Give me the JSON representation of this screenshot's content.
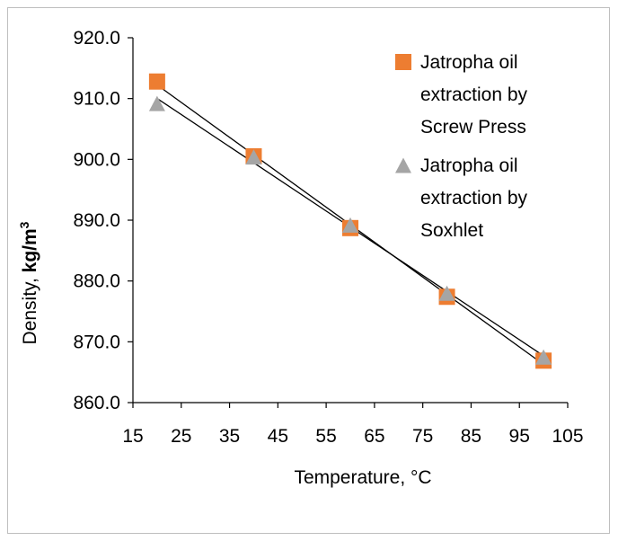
{
  "chart_data": {
    "type": "scatter",
    "title": "",
    "xlabel": "Temperature, °C",
    "ylabel_prefix": "Density, ",
    "ylabel_unit": "kg/m",
    "ylabel_sup": "3",
    "xlim": [
      15,
      105
    ],
    "ylim": [
      860,
      920
    ],
    "xticks": [
      15,
      25,
      35,
      45,
      55,
      65,
      75,
      85,
      95,
      105
    ],
    "yticks": [
      860,
      870,
      880,
      890,
      900,
      910,
      920
    ],
    "ytick_labels": [
      "860.0",
      "870.0",
      "880.0",
      "890.0",
      "900.0",
      "910.0",
      "920.0"
    ],
    "grid": false,
    "legend_position": "top-right",
    "series": [
      {
        "name_lines": [
          "Jatropha oil",
          "extraction by",
          "Screw Press"
        ],
        "marker": "square",
        "color": "#ED7D31",
        "x": [
          20,
          40,
          60,
          80,
          100
        ],
        "y": [
          912.8,
          900.5,
          888.7,
          877.4,
          866.9
        ],
        "trendline": true
      },
      {
        "name_lines": [
          "Jatropha oil",
          "extraction by",
          "Soxhlet"
        ],
        "marker": "triangle",
        "color": "#A5A5A5",
        "x": [
          20,
          40,
          60,
          80,
          100
        ],
        "y": [
          909.2,
          900.4,
          889.2,
          878.0,
          867.5
        ],
        "trendline": true
      }
    ]
  }
}
